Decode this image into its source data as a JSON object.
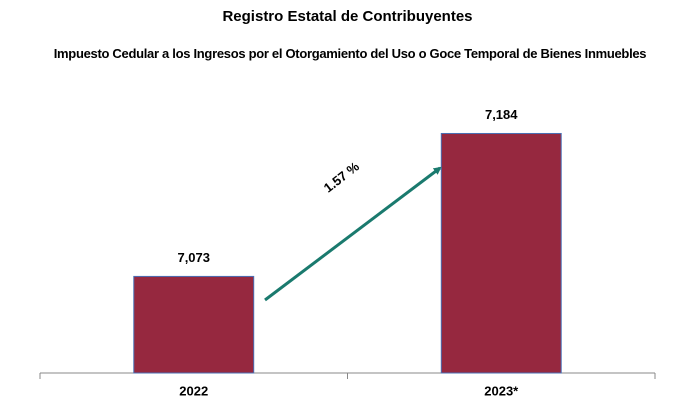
{
  "chart_data": {
    "type": "bar",
    "title": "Registro Estatal de Contribuyentes",
    "subtitle": "Impuesto Cedular a los Ingresos por el Otorgamiento del Uso o Goce Temporal de Bienes Inmuebles",
    "categories": [
      "2022",
      "2023*"
    ],
    "values": [
      7073,
      7184
    ],
    "value_labels": [
      "7,073",
      "7,184"
    ],
    "color": "#96283f",
    "ylim": [
      6998,
      7210
    ],
    "annotation": "1.57 %",
    "grid": false
  }
}
